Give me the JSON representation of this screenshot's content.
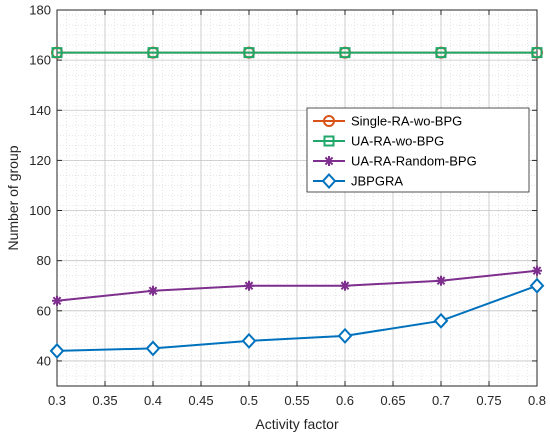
{
  "chart_data": {
    "type": "line",
    "title": "",
    "xlabel": "Activity factor",
    "ylabel": "Number of group",
    "xlim": [
      0.3,
      0.8
    ],
    "ylim": [
      30,
      180
    ],
    "xticks": [
      0.3,
      0.35,
      0.4,
      0.45,
      0.5,
      0.55,
      0.6,
      0.65,
      0.7,
      0.75,
      0.8
    ],
    "xtick_labels": [
      "0.3",
      "0.35",
      "0.4",
      "0.45",
      "0.5",
      "0.55",
      "0.6",
      "0.65",
      "0.7",
      "0.75",
      "0.8"
    ],
    "yticks": [
      40,
      60,
      80,
      100,
      120,
      140,
      160,
      180
    ],
    "ytick_labels": [
      "40",
      "60",
      "80",
      "100",
      "120",
      "140",
      "160",
      "180"
    ],
    "grid": true,
    "minor_grid": true,
    "legend_position": "center-right",
    "x": [
      0.3,
      0.4,
      0.5,
      0.6,
      0.7,
      0.8
    ],
    "series": [
      {
        "name": "Single-RA-wo-BPG",
        "color": "#D95319",
        "marker": "circle",
        "values": [
          163,
          163,
          163,
          163,
          163,
          163
        ]
      },
      {
        "name": "UA-RA-wo-BPG",
        "color": "#20A86B",
        "marker": "square",
        "values": [
          163,
          163,
          163,
          163,
          163,
          163
        ]
      },
      {
        "name": "UA-RA-Random-BPG",
        "color": "#7E2F8E",
        "marker": "asterisk",
        "values": [
          64,
          68,
          70,
          70,
          72,
          76
        ]
      },
      {
        "name": "JBPGRA",
        "color": "#0072BD",
        "marker": "diamond",
        "values": [
          44,
          45,
          48,
          50,
          56,
          70
        ]
      }
    ]
  }
}
